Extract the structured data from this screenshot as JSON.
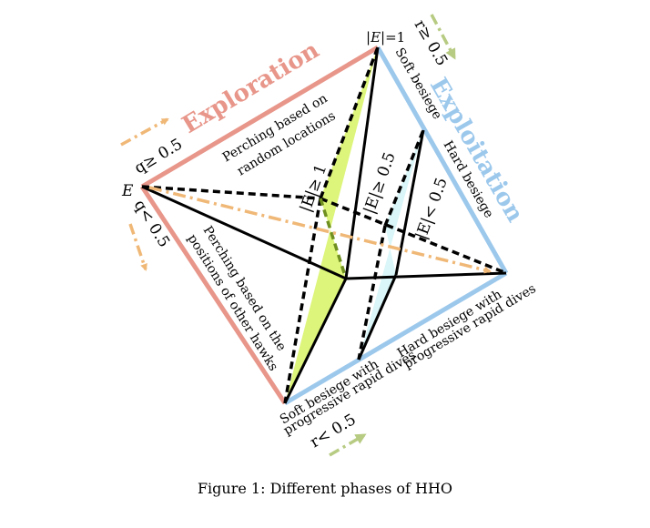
{
  "diagram": {
    "phases": {
      "exploration": {
        "label": "Exploration",
        "color": "#E8968A"
      },
      "exploitation": {
        "label": "Exploitation",
        "color": "#9CC8EC"
      }
    },
    "vertices": {
      "e_label": "E",
      "e1_prefix": "|",
      "e1_E": "E",
      "e1_suffix": "|=1"
    },
    "conditions": {
      "q_ge": "q≥ 0.5",
      "q_lt": "q< 0.5",
      "r_ge": "r≥ 0.5",
      "r_lt": "r< 0.5",
      "e_ge_1": "|E|≥ 1",
      "e_ge_05": "|E|≥ 0.5",
      "e_lt_05": "|E|< 0.5"
    },
    "strategies": {
      "perch_random_1": "Perching based on",
      "perch_random_2": "random locations",
      "perch_hawks_1": "Perching based on the",
      "perch_hawks_2": "positions of other hawks",
      "soft_besiege": "Soft besiege",
      "hard_besiege": "Hard besiege",
      "soft_rapid_1": "Soft besiege with",
      "soft_rapid_2": "progressive rapid dives",
      "hard_rapid_1": "Hard besiege with",
      "hard_rapid_2": "progressive rapid dives"
    },
    "colors": {
      "green_fill": "#DDF57A",
      "cyan_fill": "#DAF6F8",
      "orange_arrow": "#F0B877",
      "green_arrow": "#B7CB82",
      "edge": "#000000"
    }
  },
  "caption": "Figure 1: Different phases of HHO"
}
